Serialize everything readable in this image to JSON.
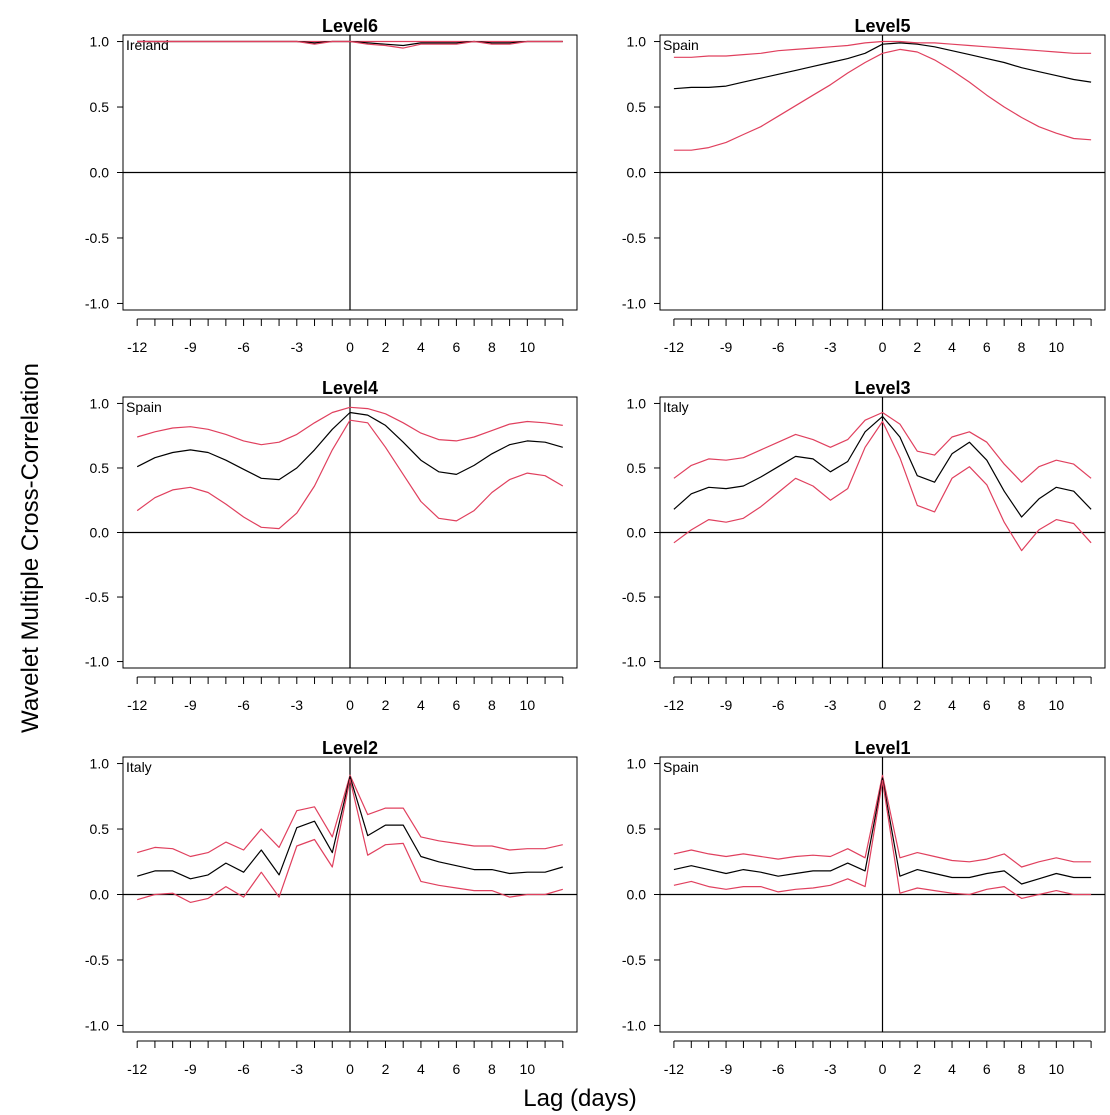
{
  "figure": {
    "ylabel": "Wavelet Multiple Cross-Correlation",
    "xlabel": "Lag (days)"
  },
  "colors": {
    "estimate": "#000000",
    "bounds": "#e0405e",
    "axis": "#000000"
  },
  "chart_data": [
    {
      "type": "line",
      "title": "Level6",
      "annotation": "Ireland",
      "x": [
        -12,
        -11,
        -10,
        -9,
        -8,
        -7,
        -6,
        -5,
        -4,
        -3,
        -2,
        -1,
        0,
        1,
        2,
        3,
        4,
        5,
        6,
        7,
        8,
        9,
        10,
        11,
        12
      ],
      "ylim": [
        -1.0,
        1.0
      ],
      "yticks": [
        -1.0,
        -0.5,
        0.0,
        0.5,
        1.0
      ],
      "xticks_labeled": [
        -12,
        -9,
        -6,
        -3,
        0,
        2,
        4,
        6,
        8,
        10
      ],
      "series": [
        {
          "role": "upper",
          "values": [
            1.0,
            1.0,
            1.0,
            1.0,
            1.0,
            1.0,
            1.0,
            1.0,
            1.0,
            1.0,
            1.0,
            1.0,
            1.0,
            1.0,
            1.0,
            1.0,
            1.0,
            1.0,
            1.0,
            1.0,
            1.0,
            1.0,
            1.0,
            1.0,
            1.0
          ]
        },
        {
          "role": "estimate",
          "values": [
            1.0,
            1.0,
            1.0,
            1.0,
            1.0,
            1.0,
            1.0,
            1.0,
            1.0,
            1.0,
            0.99,
            1.0,
            1.0,
            0.99,
            0.98,
            0.97,
            0.99,
            0.99,
            0.99,
            1.0,
            0.99,
            0.99,
            1.0,
            1.0,
            1.0
          ]
        },
        {
          "role": "lower",
          "values": [
            1.0,
            1.0,
            1.0,
            1.0,
            1.0,
            1.0,
            1.0,
            1.0,
            1.0,
            1.0,
            0.98,
            1.0,
            1.0,
            0.98,
            0.97,
            0.95,
            0.98,
            0.98,
            0.98,
            1.0,
            0.98,
            0.98,
            1.0,
            1.0,
            1.0
          ]
        }
      ]
    },
    {
      "type": "line",
      "title": "Level5",
      "annotation": "Spain",
      "x": [
        -12,
        -11,
        -10,
        -9,
        -8,
        -7,
        -6,
        -5,
        -4,
        -3,
        -2,
        -1,
        0,
        1,
        2,
        3,
        4,
        5,
        6,
        7,
        8,
        9,
        10,
        11,
        12
      ],
      "ylim": [
        -1.0,
        1.0
      ],
      "yticks": [
        -1.0,
        -0.5,
        0.0,
        0.5,
        1.0
      ],
      "xticks_labeled": [
        -12,
        -9,
        -6,
        -3,
        0,
        2,
        4,
        6,
        8,
        10
      ],
      "series": [
        {
          "role": "upper",
          "values": [
            0.88,
            0.88,
            0.89,
            0.89,
            0.9,
            0.91,
            0.93,
            0.94,
            0.95,
            0.96,
            0.97,
            0.99,
            1.0,
            1.0,
            0.99,
            0.99,
            0.98,
            0.97,
            0.96,
            0.95,
            0.94,
            0.93,
            0.92,
            0.91,
            0.91
          ]
        },
        {
          "role": "estimate",
          "values": [
            0.64,
            0.65,
            0.65,
            0.66,
            0.69,
            0.72,
            0.75,
            0.78,
            0.81,
            0.84,
            0.87,
            0.91,
            0.98,
            0.99,
            0.98,
            0.96,
            0.93,
            0.9,
            0.87,
            0.84,
            0.8,
            0.77,
            0.74,
            0.71,
            0.69
          ]
        },
        {
          "role": "lower",
          "values": [
            0.17,
            0.17,
            0.19,
            0.23,
            0.29,
            0.35,
            0.43,
            0.51,
            0.59,
            0.67,
            0.76,
            0.84,
            0.91,
            0.94,
            0.92,
            0.86,
            0.78,
            0.69,
            0.59,
            0.5,
            0.42,
            0.35,
            0.3,
            0.26,
            0.25
          ]
        }
      ]
    },
    {
      "type": "line",
      "title": "Level4",
      "annotation": "Spain",
      "x": [
        -12,
        -11,
        -10,
        -9,
        -8,
        -7,
        -6,
        -5,
        -4,
        -3,
        -2,
        -1,
        0,
        1,
        2,
        3,
        4,
        5,
        6,
        7,
        8,
        9,
        10,
        11,
        12
      ],
      "ylim": [
        -1.0,
        1.0
      ],
      "yticks": [
        -1.0,
        -0.5,
        0.0,
        0.5,
        1.0
      ],
      "xticks_labeled": [
        -12,
        -9,
        -6,
        -3,
        0,
        2,
        4,
        6,
        8,
        10
      ],
      "series": [
        {
          "role": "upper",
          "values": [
            0.74,
            0.78,
            0.81,
            0.82,
            0.8,
            0.76,
            0.71,
            0.68,
            0.7,
            0.76,
            0.85,
            0.93,
            0.97,
            0.96,
            0.92,
            0.85,
            0.77,
            0.72,
            0.71,
            0.74,
            0.79,
            0.84,
            0.86,
            0.85,
            0.83
          ]
        },
        {
          "role": "estimate",
          "values": [
            0.51,
            0.58,
            0.62,
            0.64,
            0.62,
            0.56,
            0.49,
            0.42,
            0.41,
            0.5,
            0.64,
            0.8,
            0.93,
            0.91,
            0.83,
            0.7,
            0.56,
            0.47,
            0.45,
            0.52,
            0.61,
            0.68,
            0.71,
            0.7,
            0.66
          ]
        },
        {
          "role": "lower",
          "values": [
            0.17,
            0.27,
            0.33,
            0.35,
            0.31,
            0.22,
            0.12,
            0.04,
            0.03,
            0.15,
            0.36,
            0.64,
            0.87,
            0.85,
            0.66,
            0.45,
            0.24,
            0.11,
            0.09,
            0.17,
            0.31,
            0.41,
            0.46,
            0.44,
            0.36
          ]
        }
      ]
    },
    {
      "type": "line",
      "title": "Level3",
      "annotation": "Italy",
      "x": [
        -12,
        -11,
        -10,
        -9,
        -8,
        -7,
        -6,
        -5,
        -4,
        -3,
        -2,
        -1,
        0,
        1,
        2,
        3,
        4,
        5,
        6,
        7,
        8,
        9,
        10,
        11,
        12
      ],
      "ylim": [
        -1.0,
        1.0
      ],
      "yticks": [
        -1.0,
        -0.5,
        0.0,
        0.5,
        1.0
      ],
      "xticks_labeled": [
        -12,
        -9,
        -6,
        -3,
        0,
        2,
        4,
        6,
        8,
        10
      ],
      "series": [
        {
          "role": "upper",
          "values": [
            0.42,
            0.52,
            0.57,
            0.56,
            0.58,
            0.64,
            0.7,
            0.76,
            0.72,
            0.66,
            0.72,
            0.87,
            0.93,
            0.84,
            0.63,
            0.6,
            0.74,
            0.78,
            0.7,
            0.53,
            0.39,
            0.51,
            0.56,
            0.53,
            0.42
          ]
        },
        {
          "role": "estimate",
          "values": [
            0.18,
            0.3,
            0.35,
            0.34,
            0.36,
            0.43,
            0.51,
            0.59,
            0.57,
            0.47,
            0.55,
            0.78,
            0.9,
            0.74,
            0.44,
            0.39,
            0.61,
            0.7,
            0.56,
            0.32,
            0.12,
            0.26,
            0.35,
            0.32,
            0.18
          ]
        },
        {
          "role": "lower",
          "values": [
            -0.08,
            0.02,
            0.1,
            0.08,
            0.11,
            0.2,
            0.31,
            0.42,
            0.36,
            0.25,
            0.34,
            0.66,
            0.86,
            0.58,
            0.21,
            0.16,
            0.42,
            0.51,
            0.37,
            0.08,
            -0.14,
            0.02,
            0.1,
            0.07,
            -0.08
          ]
        }
      ]
    },
    {
      "type": "line",
      "title": "Level2",
      "annotation": "Italy",
      "x": [
        -12,
        -11,
        -10,
        -9,
        -8,
        -7,
        -6,
        -5,
        -4,
        -3,
        -2,
        -1,
        0,
        1,
        2,
        3,
        4,
        5,
        6,
        7,
        8,
        9,
        10,
        11,
        12
      ],
      "ylim": [
        -1.0,
        1.0
      ],
      "yticks": [
        -1.0,
        -0.5,
        0.0,
        0.5,
        1.0
      ],
      "xticks_labeled": [
        -12,
        -9,
        -6,
        -3,
        0,
        2,
        4,
        6,
        8,
        10
      ],
      "series": [
        {
          "role": "upper",
          "values": [
            0.32,
            0.36,
            0.35,
            0.29,
            0.32,
            0.4,
            0.34,
            0.5,
            0.36,
            0.64,
            0.67,
            0.44,
            0.91,
            0.61,
            0.66,
            0.66,
            0.44,
            0.41,
            0.39,
            0.37,
            0.37,
            0.34,
            0.35,
            0.35,
            0.38
          ]
        },
        {
          "role": "estimate",
          "values": [
            0.14,
            0.18,
            0.18,
            0.12,
            0.15,
            0.24,
            0.17,
            0.34,
            0.15,
            0.51,
            0.56,
            0.32,
            0.9,
            0.45,
            0.53,
            0.53,
            0.29,
            0.25,
            0.22,
            0.19,
            0.19,
            0.16,
            0.17,
            0.17,
            0.21
          ]
        },
        {
          "role": "lower",
          "values": [
            -0.04,
            0.0,
            0.01,
            -0.06,
            -0.03,
            0.06,
            -0.02,
            0.17,
            -0.02,
            0.37,
            0.42,
            0.21,
            0.88,
            0.3,
            0.38,
            0.39,
            0.1,
            0.07,
            0.05,
            0.03,
            0.03,
            -0.02,
            0.0,
            0.0,
            0.04
          ]
        }
      ]
    },
    {
      "type": "line",
      "title": "Level1",
      "annotation": "Spain",
      "x": [
        -12,
        -11,
        -10,
        -9,
        -8,
        -7,
        -6,
        -5,
        -4,
        -3,
        -2,
        -1,
        0,
        1,
        2,
        3,
        4,
        5,
        6,
        7,
        8,
        9,
        10,
        11,
        12
      ],
      "ylim": [
        -1.0,
        1.0
      ],
      "yticks": [
        -1.0,
        -0.5,
        0.0,
        0.5,
        1.0
      ],
      "xticks_labeled": [
        -12,
        -9,
        -6,
        -3,
        0,
        2,
        4,
        6,
        8,
        10
      ],
      "series": [
        {
          "role": "upper",
          "values": [
            0.31,
            0.34,
            0.31,
            0.29,
            0.31,
            0.29,
            0.27,
            0.29,
            0.3,
            0.29,
            0.35,
            0.28,
            0.91,
            0.28,
            0.32,
            0.29,
            0.26,
            0.25,
            0.27,
            0.31,
            0.21,
            0.25,
            0.28,
            0.25,
            0.25
          ]
        },
        {
          "role": "estimate",
          "values": [
            0.19,
            0.22,
            0.19,
            0.16,
            0.19,
            0.17,
            0.14,
            0.16,
            0.18,
            0.18,
            0.24,
            0.18,
            0.89,
            0.14,
            0.19,
            0.16,
            0.13,
            0.13,
            0.16,
            0.18,
            0.08,
            0.12,
            0.16,
            0.13,
            0.13
          ]
        },
        {
          "role": "lower",
          "values": [
            0.07,
            0.1,
            0.06,
            0.04,
            0.06,
            0.06,
            0.02,
            0.04,
            0.05,
            0.07,
            0.12,
            0.06,
            0.87,
            0.01,
            0.05,
            0.03,
            0.01,
            0.0,
            0.04,
            0.06,
            -0.03,
            0.0,
            0.03,
            0.0,
            0.0
          ]
        }
      ]
    }
  ]
}
